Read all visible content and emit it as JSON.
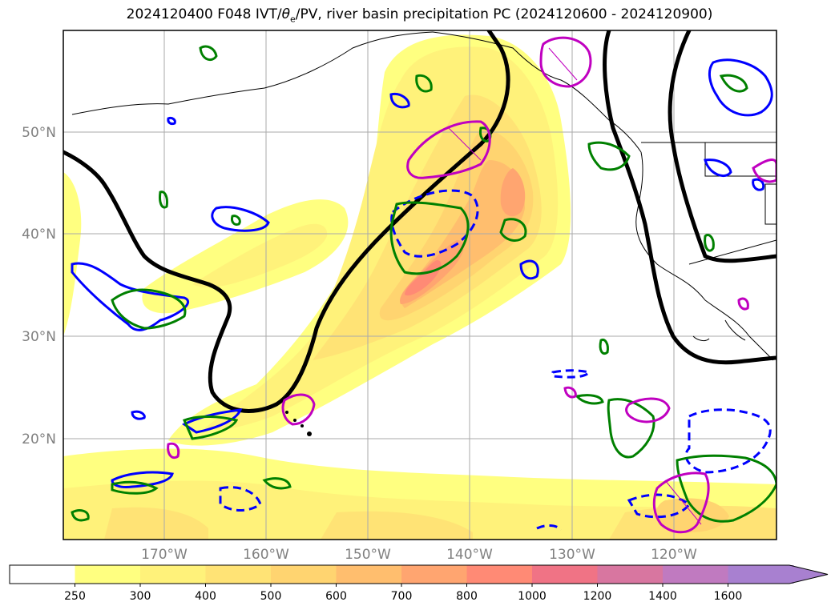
{
  "title": {
    "prefix": "2024120400 F048 IVT/",
    "theta": "θ",
    "sub_e": "e",
    "suffix": "/PV, river basin precipitation PC (2024120600 - 2024120900)"
  },
  "lat_labels": [
    "50°N",
    "40°N",
    "30°N",
    "20°N"
  ],
  "lon_labels": [
    "170°W",
    "160°W",
    "150°W",
    "140°W",
    "130°W",
    "120°W"
  ],
  "colorbar": {
    "labels": [
      "250",
      "300",
      "400",
      "500",
      "600",
      "700",
      "800",
      "1000",
      "1200",
      "1400",
      "1600"
    ],
    "colors": [
      "#ffffff",
      "#ffff80",
      "#fff27a",
      "#ffe375",
      "#ffd470",
      "#ffbe6e",
      "#ffa570",
      "#ff8a75",
      "#f07385",
      "#d876a0",
      "#c07ac0",
      "#a880d0"
    ],
    "extend": "max"
  },
  "style": {
    "ridge_contour": "#000000",
    "pv_anomaly_a": "#0000ff",
    "pv_anomaly_b": "#008000",
    "theta_e": "#c000c0",
    "grid": "#aaaaaa"
  }
}
